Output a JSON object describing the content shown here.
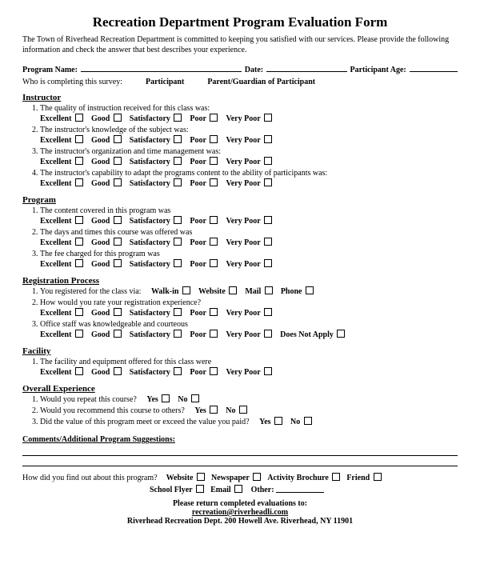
{
  "title": "Recreation Department Program Evaluation Form",
  "intro": "The Town of Riverhead Recreation Department is committed to keeping you satisfied with our services. Please provide the following information and check the answer that best describes your experience.",
  "fields": {
    "program_label": "Program Name:",
    "date_label": "Date:",
    "age_label": "Participant Age:",
    "who_prefix": "Who is completing this survey:",
    "who_opts": [
      "Participant",
      "Parent/Guardian of Participant"
    ]
  },
  "rating_scale": [
    "Excellent",
    "Good",
    "Satisfactory",
    "Poor",
    "Very Poor"
  ],
  "yes_no": [
    "Yes",
    "No"
  ],
  "sections": [
    {
      "head": "Instructor",
      "items": [
        {
          "q": "The quality of instruction received for this class was:",
          "scale": "rating"
        },
        {
          "q": "The instructor's knowledge of the subject was:",
          "scale": "rating"
        },
        {
          "q": "The instructor's organization and time management was:",
          "scale": "rating"
        },
        {
          "q": "The instructor's capability to adapt the programs content to the ability of participants was:",
          "scale": "rating"
        }
      ]
    },
    {
      "head": "Program",
      "items": [
        {
          "q": "The content covered in this program was",
          "scale": "rating"
        },
        {
          "q": "The days and times this course was offered was",
          "scale": "rating"
        },
        {
          "q": "The fee charged for this program was",
          "scale": "rating"
        }
      ]
    },
    {
      "head": "Registration Process",
      "items": [
        {
          "q": "You registered for the class via:",
          "inline": true,
          "opts": [
            "Walk-in",
            "Website",
            "Mail",
            "Phone"
          ]
        },
        {
          "q": "How would you rate your registration experience?",
          "scale": "rating"
        },
        {
          "q": "Office staff was knowledgeable and courteous",
          "scale": "rating",
          "extra": "Does Not Apply"
        }
      ]
    },
    {
      "head": "Facility",
      "items": [
        {
          "q": "The facility and equipment offered for this class were",
          "scale": "rating"
        }
      ]
    },
    {
      "head": "Overall Experience",
      "items": [
        {
          "q": "Would you repeat this course?",
          "inline": true,
          "opts_key": "yes_no"
        },
        {
          "q": "Would you recommend this course to others?",
          "inline": true,
          "opts_key": "yes_no"
        },
        {
          "q": "Did the value of this program meet or exceed the value you paid?",
          "inline": true,
          "opts_key": "yes_no"
        }
      ]
    }
  ],
  "comments_head": "Comments/Additional Program Suggestions:",
  "howfind": {
    "q": "How did you find out about this program?",
    "opts_line1": [
      "Website",
      "Newspaper",
      "Activity Brochure",
      "Friend"
    ],
    "opts_line2": [
      "School Flyer",
      "Email"
    ],
    "other_label": "Other:"
  },
  "footer": {
    "line1": "Please return completed evaluations to:",
    "email": "recreation@riverheadli.com",
    "addr": "Riverhead Recreation Dept. 200 Howell Ave. Riverhead, NY 11901"
  }
}
